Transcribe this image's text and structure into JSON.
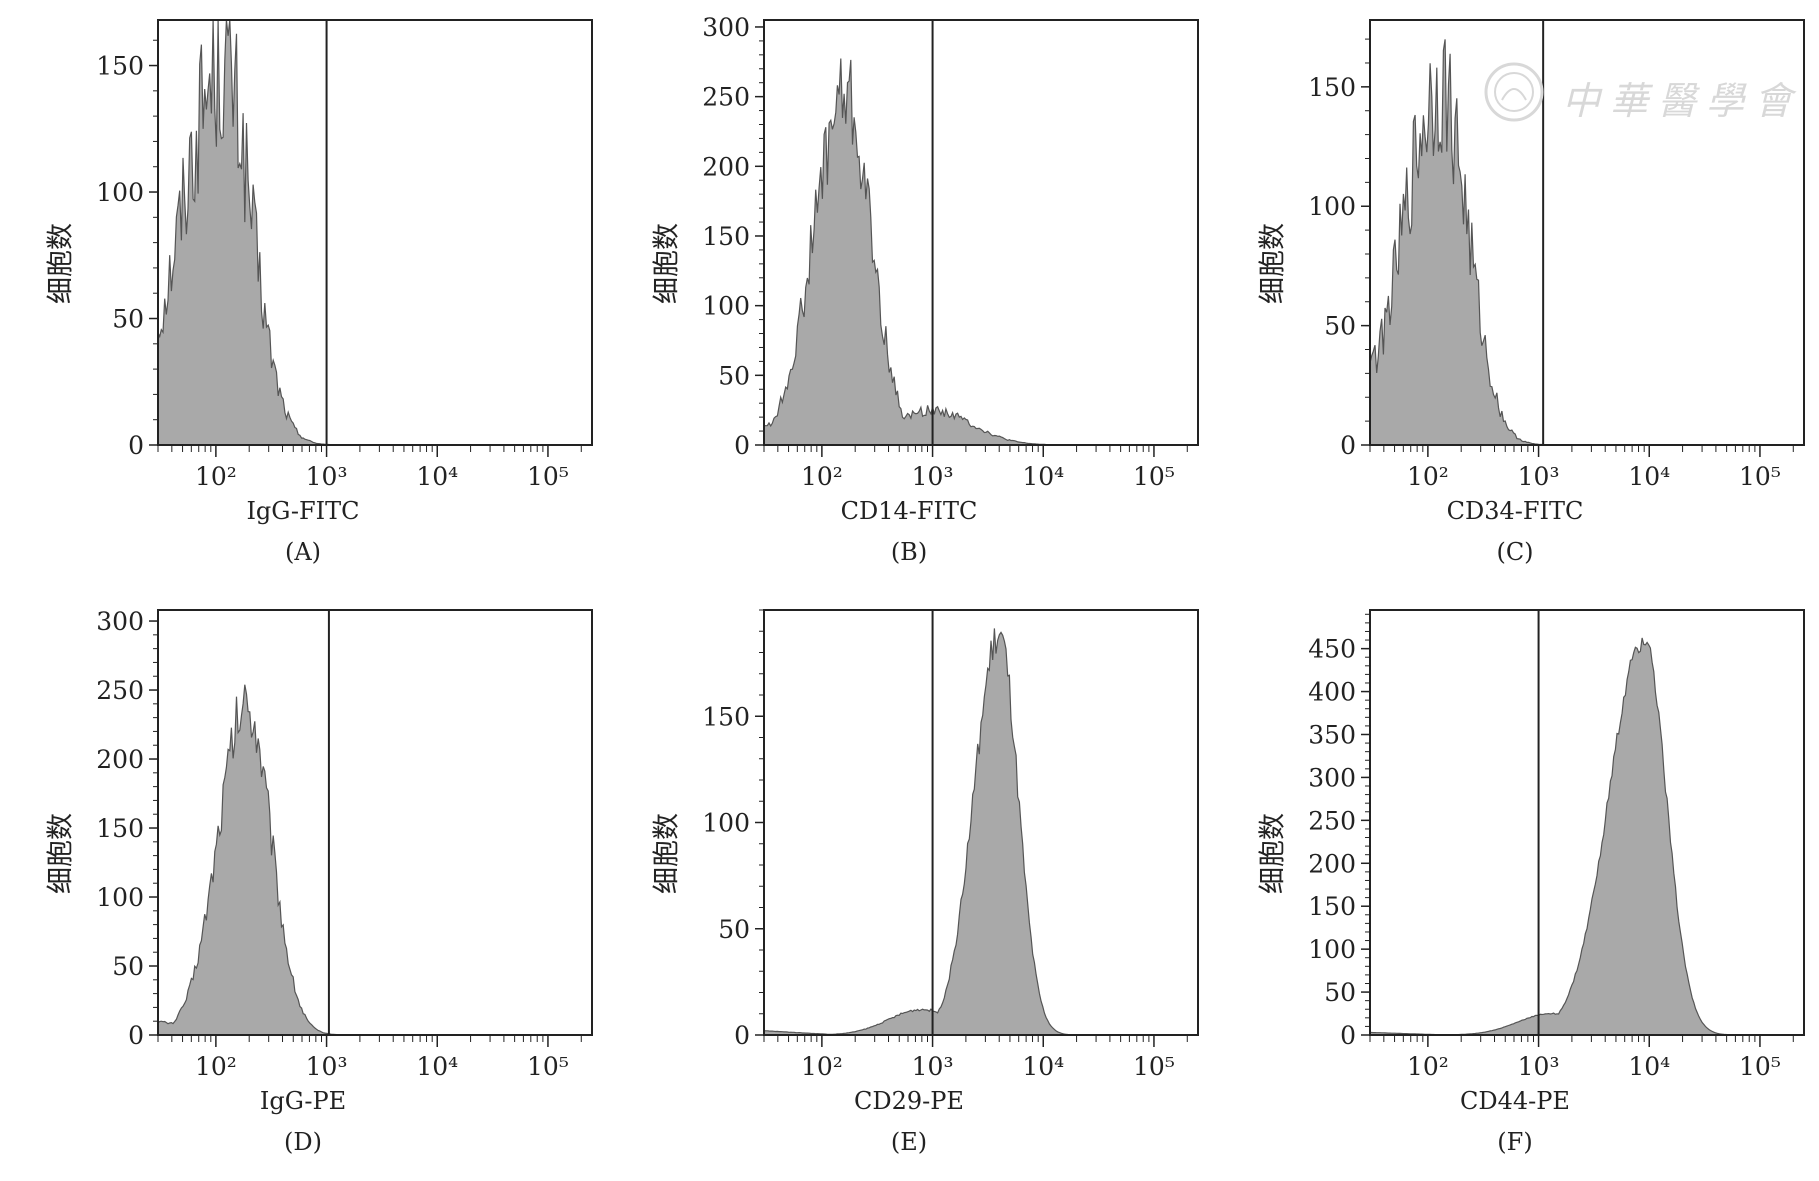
{
  "watermark": {
    "text": "中華醫學會"
  },
  "chart_data": [
    {
      "panel": "(A)",
      "type": "histogram",
      "xlabel": "IgG-FITC",
      "ylabel": "细胞数",
      "x_scale": "log",
      "xlim": [
        30,
        250000
      ],
      "x_ticks": [
        100,
        1000,
        10000,
        100000
      ],
      "ylim": [
        0,
        168
      ],
      "y_ticks": [
        0,
        50,
        100,
        150
      ],
      "gate_x": 1000,
      "peak": {
        "x": 115,
        "height": 150,
        "left_width": 0.38,
        "right_width": 0.26
      },
      "noise": 0.45,
      "left_floor": 30,
      "tail": null
    },
    {
      "panel": "(B)",
      "type": "histogram",
      "xlabel": "CD14-FITC",
      "ylabel": "细胞数",
      "x_scale": "log",
      "xlim": [
        30,
        250000
      ],
      "x_ticks": [
        100,
        1000,
        10000,
        100000
      ],
      "ylim": [
        0,
        305
      ],
      "y_ticks": [
        0,
        50,
        100,
        150,
        200,
        250,
        300
      ],
      "gate_x": 1000,
      "peak": {
        "x": 160,
        "height": 250,
        "left_width": 0.28,
        "right_width": 0.24
      },
      "noise": 0.3,
      "left_floor": 15,
      "tail": {
        "height": 25,
        "x": 1000,
        "width": 0.35
      }
    },
    {
      "panel": "(C)",
      "type": "histogram",
      "xlabel": "CD34-FITC",
      "ylabel": "细胞数",
      "x_scale": "log",
      "xlim": [
        30,
        250000
      ],
      "x_ticks": [
        100,
        1000,
        10000,
        100000
      ],
      "ylim": [
        0,
        178
      ],
      "y_ticks": [
        0,
        50,
        100,
        150
      ],
      "gate_x": 1100,
      "peak": {
        "x": 130,
        "height": 150,
        "left_width": 0.34,
        "right_width": 0.25
      },
      "noise": 0.4,
      "left_floor": 40,
      "tail": null
    },
    {
      "panel": "(D)",
      "type": "histogram",
      "xlabel": "IgG-PE",
      "ylabel": "细胞数",
      "x_scale": "log",
      "xlim": [
        30,
        250000
      ],
      "x_ticks": [
        100,
        1000,
        10000,
        100000
      ],
      "ylim": [
        0,
        308
      ],
      "y_ticks": [
        0,
        50,
        100,
        150,
        200,
        250,
        300
      ],
      "gate_x": 1050,
      "peak": {
        "x": 190,
        "height": 240,
        "left_width": 0.26,
        "right_width": 0.22
      },
      "noise": 0.2,
      "left_floor": 10,
      "tail": null
    },
    {
      "panel": "(E)",
      "type": "histogram",
      "xlabel": "CD29-PE",
      "ylabel": "细胞数",
      "x_scale": "log",
      "xlim": [
        30,
        250000
      ],
      "x_ticks": [
        100,
        1000,
        10000,
        100000
      ],
      "ylim": [
        0,
        200
      ],
      "y_ticks": [
        0,
        50,
        100,
        150
      ],
      "gate_x": 1000,
      "peak": {
        "x": 4000,
        "height": 188,
        "left_width": 0.23,
        "right_width": 0.17
      },
      "noise": 0.1,
      "left_floor": 2,
      "tail": {
        "height": 12,
        "x": 800,
        "width": 0.3
      }
    },
    {
      "panel": "(F)",
      "type": "histogram",
      "xlabel": "CD44-PE",
      "ylabel": "细胞数",
      "x_scale": "log",
      "xlim": [
        30,
        250000
      ],
      "x_ticks": [
        100,
        1000,
        10000,
        100000
      ],
      "ylim": [
        0,
        495
      ],
      "y_ticks": [
        0,
        50,
        100,
        150,
        200,
        250,
        300,
        350,
        400,
        450
      ],
      "gate_x": 1000,
      "peak": {
        "x": 9000,
        "height": 460,
        "left_width": 0.32,
        "right_width": 0.2
      },
      "noise": 0.05,
      "left_floor": 3,
      "tail": {
        "height": 25,
        "x": 1300,
        "width": 0.3
      }
    }
  ]
}
